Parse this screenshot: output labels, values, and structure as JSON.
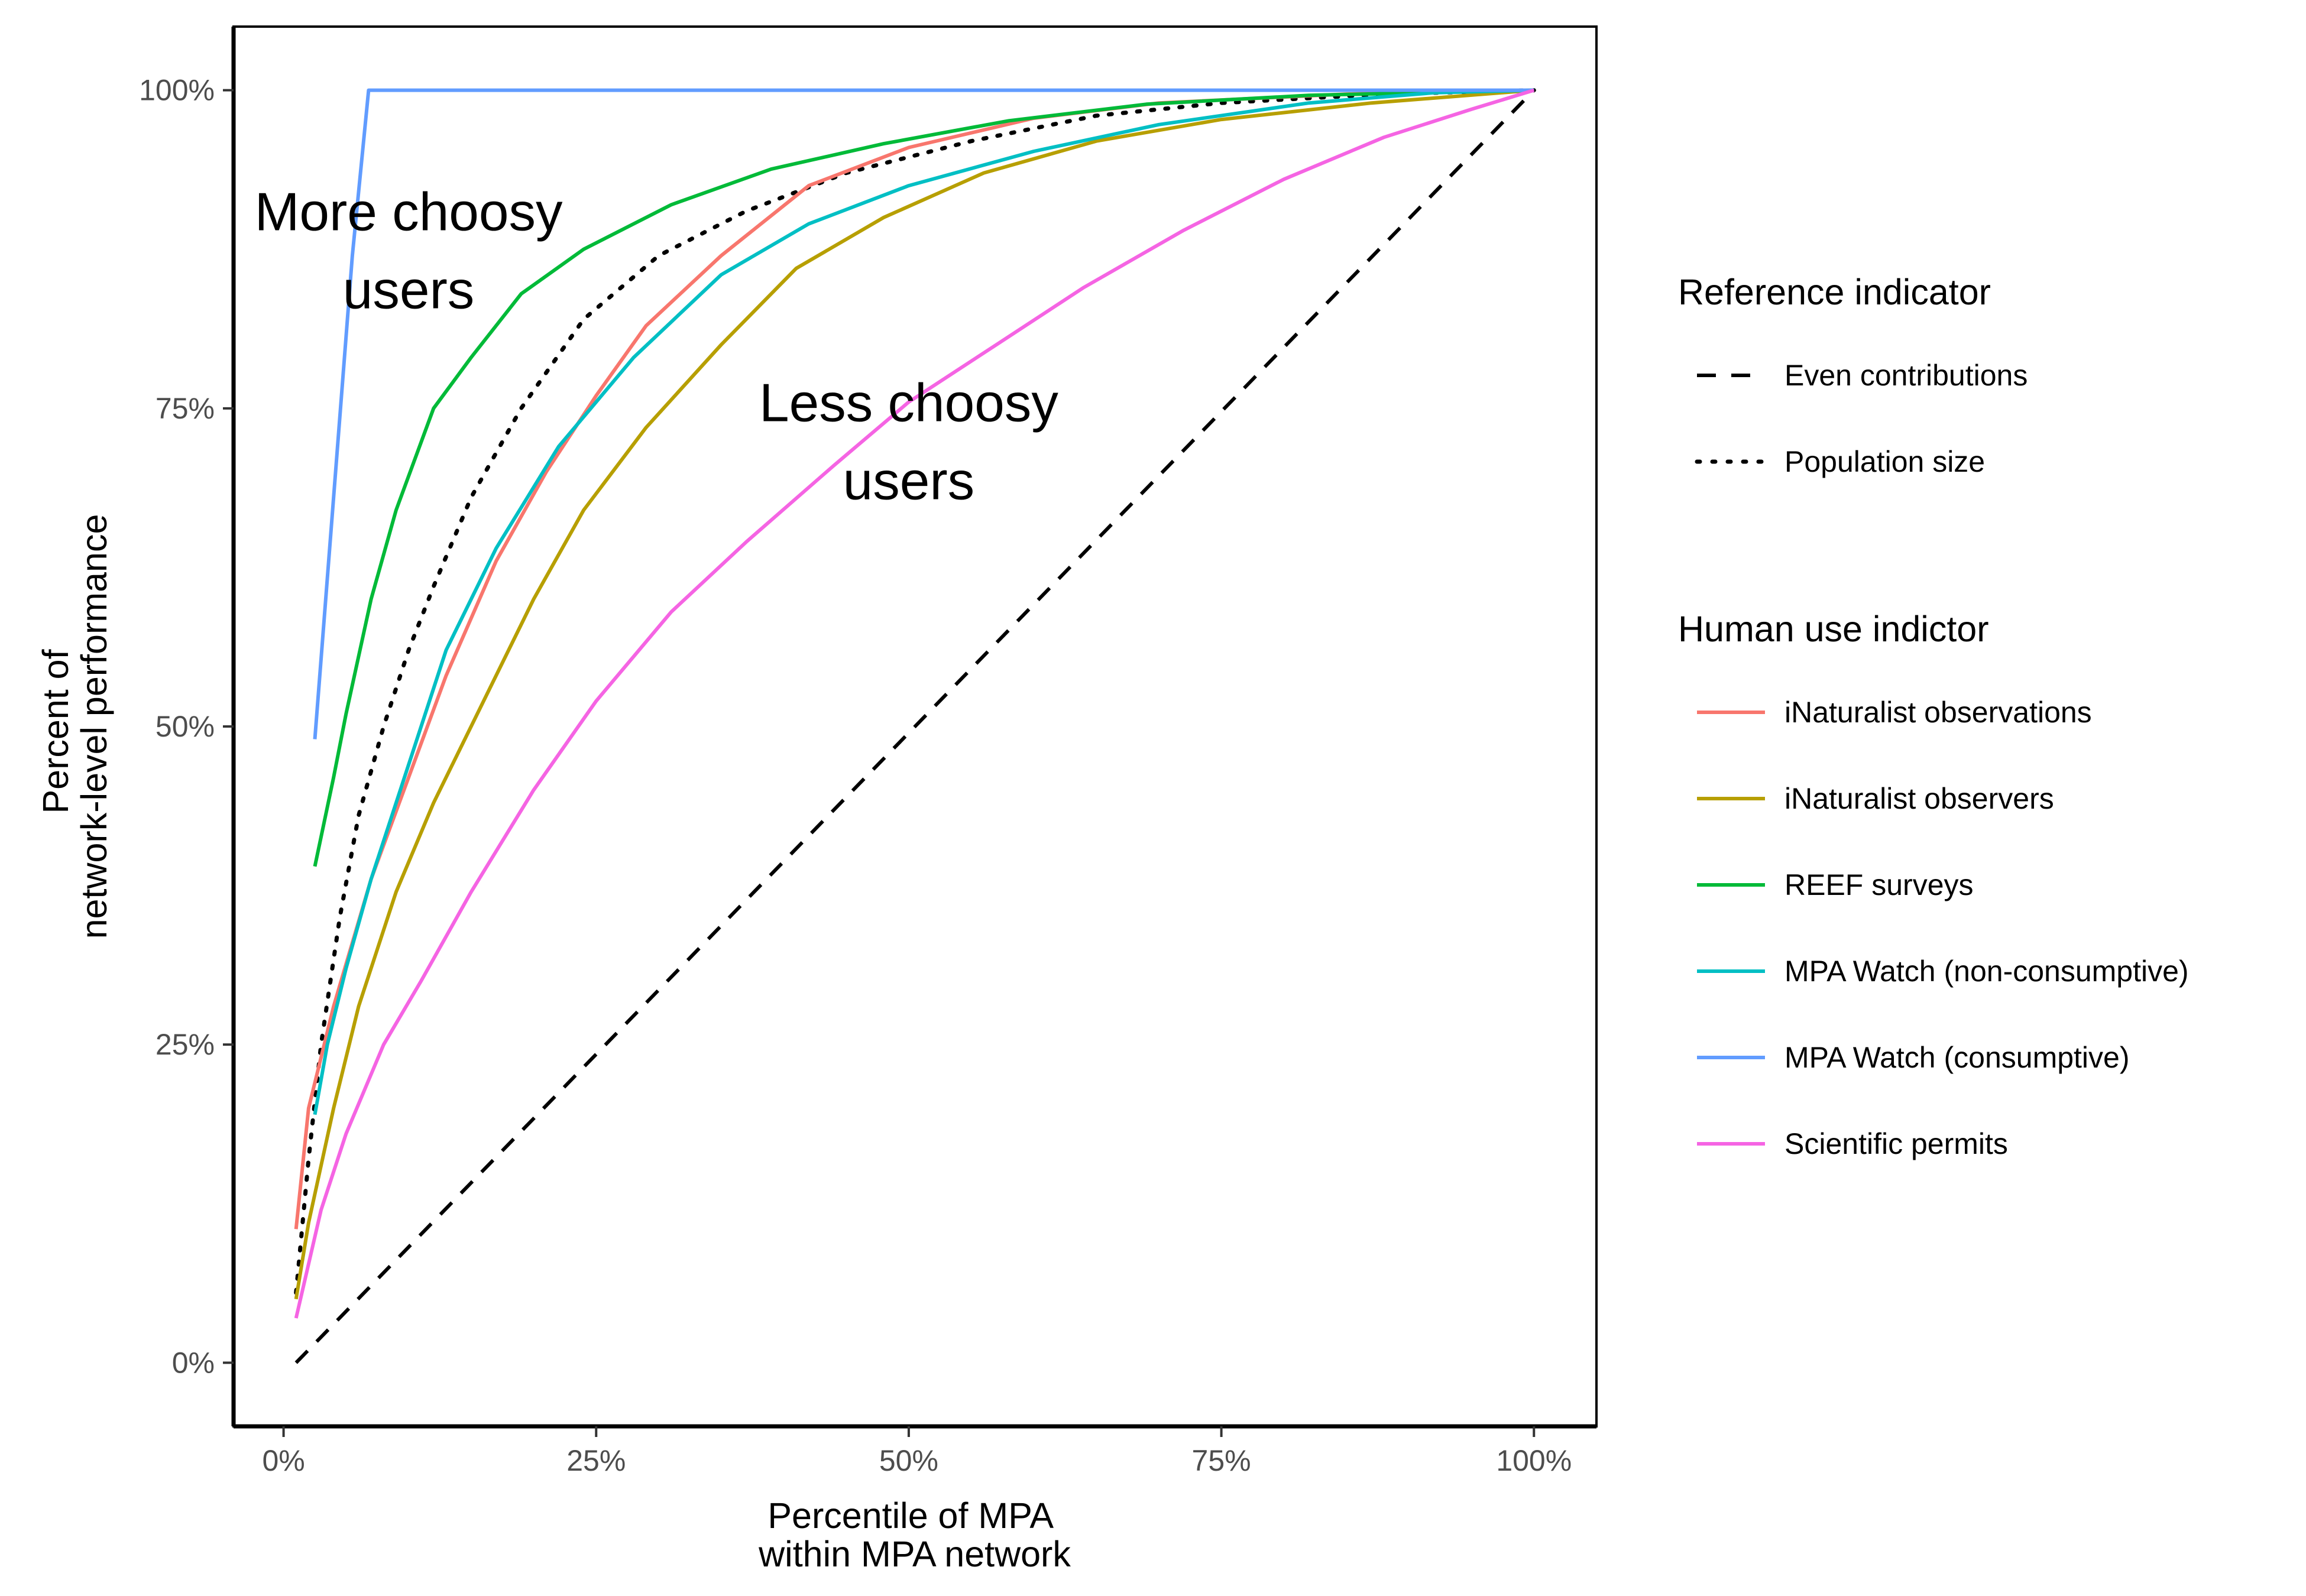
{
  "chart_data": {
    "type": "line",
    "xlabel": [
      "Percentile of MPA",
      "within MPA network"
    ],
    "ylabel": [
      "Percent of",
      "network-level performance"
    ],
    "xlim": [
      -0.04,
      1.05
    ],
    "ylim": [
      -0.05,
      1.05
    ],
    "x_ticks": [
      {
        "value": 0,
        "label": "0%"
      },
      {
        "value": 0.25,
        "label": "25%"
      },
      {
        "value": 0.5,
        "label": "50%"
      },
      {
        "value": 0.75,
        "label": "75%"
      },
      {
        "value": 1,
        "label": "100%"
      }
    ],
    "y_ticks": [
      {
        "value": 0,
        "label": "0%"
      },
      {
        "value": 0.25,
        "label": "25%"
      },
      {
        "value": 0.5,
        "label": "50%"
      },
      {
        "value": 0.75,
        "label": "75%"
      },
      {
        "value": 1,
        "label": "100%"
      }
    ],
    "grid": false,
    "legend_position": "right",
    "annotations": [
      {
        "id": "more-choosy",
        "lines": [
          "More choosy",
          "users"
        ],
        "x": 0.1,
        "y": 0.89
      },
      {
        "id": "less-choosy",
        "lines": [
          "Less choosy",
          "users"
        ],
        "x": 0.5,
        "y": 0.74
      }
    ],
    "reference_indicators": {
      "title": "Reference indicator",
      "series": [
        {
          "name": "Even contributions",
          "color": "#000000",
          "dash": "dashed",
          "points": [
            [
              0.01,
              0.0
            ],
            [
              1.0,
              1.0
            ]
          ]
        },
        {
          "name": "Population size",
          "color": "#000000",
          "dash": "dotted",
          "points": [
            [
              0.01,
              0.055
            ],
            [
              0.02,
              0.16
            ],
            [
              0.03,
              0.25
            ],
            [
              0.045,
              0.35
            ],
            [
              0.06,
              0.43
            ],
            [
              0.08,
              0.5
            ],
            [
              0.1,
              0.56
            ],
            [
              0.12,
              0.61
            ],
            [
              0.15,
              0.68
            ],
            [
              0.19,
              0.75
            ],
            [
              0.24,
              0.82
            ],
            [
              0.3,
              0.87
            ],
            [
              0.37,
              0.905
            ],
            [
              0.45,
              0.935
            ],
            [
              0.55,
              0.96
            ],
            [
              0.65,
              0.98
            ],
            [
              0.75,
              0.99
            ],
            [
              0.88,
              0.997
            ],
            [
              1.0,
              1.0
            ]
          ]
        }
      ]
    },
    "human_use_indicators": {
      "title": "Human use indictor",
      "series": [
        {
          "name": "iNaturalist observations",
          "color": "#F8766D",
          "points": [
            [
              0.01,
              0.105
            ],
            [
              0.02,
              0.2
            ],
            [
              0.04,
              0.28
            ],
            [
              0.07,
              0.38
            ],
            [
              0.1,
              0.46
            ],
            [
              0.13,
              0.54
            ],
            [
              0.17,
              0.63
            ],
            [
              0.21,
              0.7
            ],
            [
              0.25,
              0.76
            ],
            [
              0.29,
              0.815
            ],
            [
              0.35,
              0.87
            ],
            [
              0.42,
              0.925
            ],
            [
              0.5,
              0.955
            ],
            [
              0.6,
              0.978
            ],
            [
              0.7,
              0.99
            ],
            [
              0.85,
              0.997
            ],
            [
              1.0,
              1.0
            ]
          ]
        },
        {
          "name": "iNaturalist observers",
          "color": "#B79F00",
          "points": [
            [
              0.01,
              0.05
            ],
            [
              0.02,
              0.11
            ],
            [
              0.04,
              0.2
            ],
            [
              0.06,
              0.28
            ],
            [
              0.09,
              0.37
            ],
            [
              0.12,
              0.44
            ],
            [
              0.16,
              0.52
            ],
            [
              0.2,
              0.6
            ],
            [
              0.24,
              0.67
            ],
            [
              0.29,
              0.735
            ],
            [
              0.35,
              0.8
            ],
            [
              0.41,
              0.86
            ],
            [
              0.48,
              0.9
            ],
            [
              0.56,
              0.935
            ],
            [
              0.65,
              0.96
            ],
            [
              0.75,
              0.977
            ],
            [
              0.87,
              0.99
            ],
            [
              1.0,
              1.0
            ]
          ]
        },
        {
          "name": "REEF surveys",
          "color": "#00BA38",
          "points": [
            [
              0.025,
              0.39
            ],
            [
              0.04,
              0.46
            ],
            [
              0.05,
              0.51
            ],
            [
              0.07,
              0.6
            ],
            [
              0.09,
              0.67
            ],
            [
              0.12,
              0.75
            ],
            [
              0.15,
              0.79
            ],
            [
              0.19,
              0.84
            ],
            [
              0.24,
              0.875
            ],
            [
              0.31,
              0.91
            ],
            [
              0.39,
              0.938
            ],
            [
              0.48,
              0.958
            ],
            [
              0.58,
              0.976
            ],
            [
              0.69,
              0.989
            ],
            [
              0.82,
              0.996
            ],
            [
              1.0,
              1.0
            ]
          ]
        },
        {
          "name": "MPA Watch (non-consumptive)",
          "color": "#00BFC4",
          "points": [
            [
              0.025,
              0.195
            ],
            [
              0.035,
              0.25
            ],
            [
              0.05,
              0.31
            ],
            [
              0.07,
              0.38
            ],
            [
              0.1,
              0.47
            ],
            [
              0.13,
              0.56
            ],
            [
              0.17,
              0.64
            ],
            [
              0.22,
              0.72
            ],
            [
              0.28,
              0.79
            ],
            [
              0.35,
              0.855
            ],
            [
              0.42,
              0.895
            ],
            [
              0.5,
              0.925
            ],
            [
              0.6,
              0.952
            ],
            [
              0.7,
              0.973
            ],
            [
              0.82,
              0.99
            ],
            [
              0.92,
              0.998
            ],
            [
              1.0,
              1.0
            ]
          ]
        },
        {
          "name": "MPA Watch (consumptive)",
          "color": "#619CFF",
          "points": [
            [
              0.025,
              0.49
            ],
            [
              0.055,
              0.87
            ],
            [
              0.068,
              1.0
            ],
            [
              1.0,
              1.0
            ]
          ]
        },
        {
          "name": "Scientific permits",
          "color": "#F564E3",
          "points": [
            [
              0.01,
              0.035
            ],
            [
              0.03,
              0.12
            ],
            [
              0.05,
              0.18
            ],
            [
              0.08,
              0.25
            ],
            [
              0.11,
              0.3
            ],
            [
              0.15,
              0.37
            ],
            [
              0.2,
              0.45
            ],
            [
              0.25,
              0.52
            ],
            [
              0.31,
              0.59
            ],
            [
              0.37,
              0.645
            ],
            [
              0.44,
              0.705
            ],
            [
              0.5,
              0.755
            ],
            [
              0.57,
              0.8
            ],
            [
              0.64,
              0.845
            ],
            [
              0.72,
              0.89
            ],
            [
              0.8,
              0.93
            ],
            [
              0.88,
              0.963
            ],
            [
              0.95,
              0.985
            ],
            [
              1.0,
              1.0
            ]
          ]
        }
      ]
    }
  }
}
